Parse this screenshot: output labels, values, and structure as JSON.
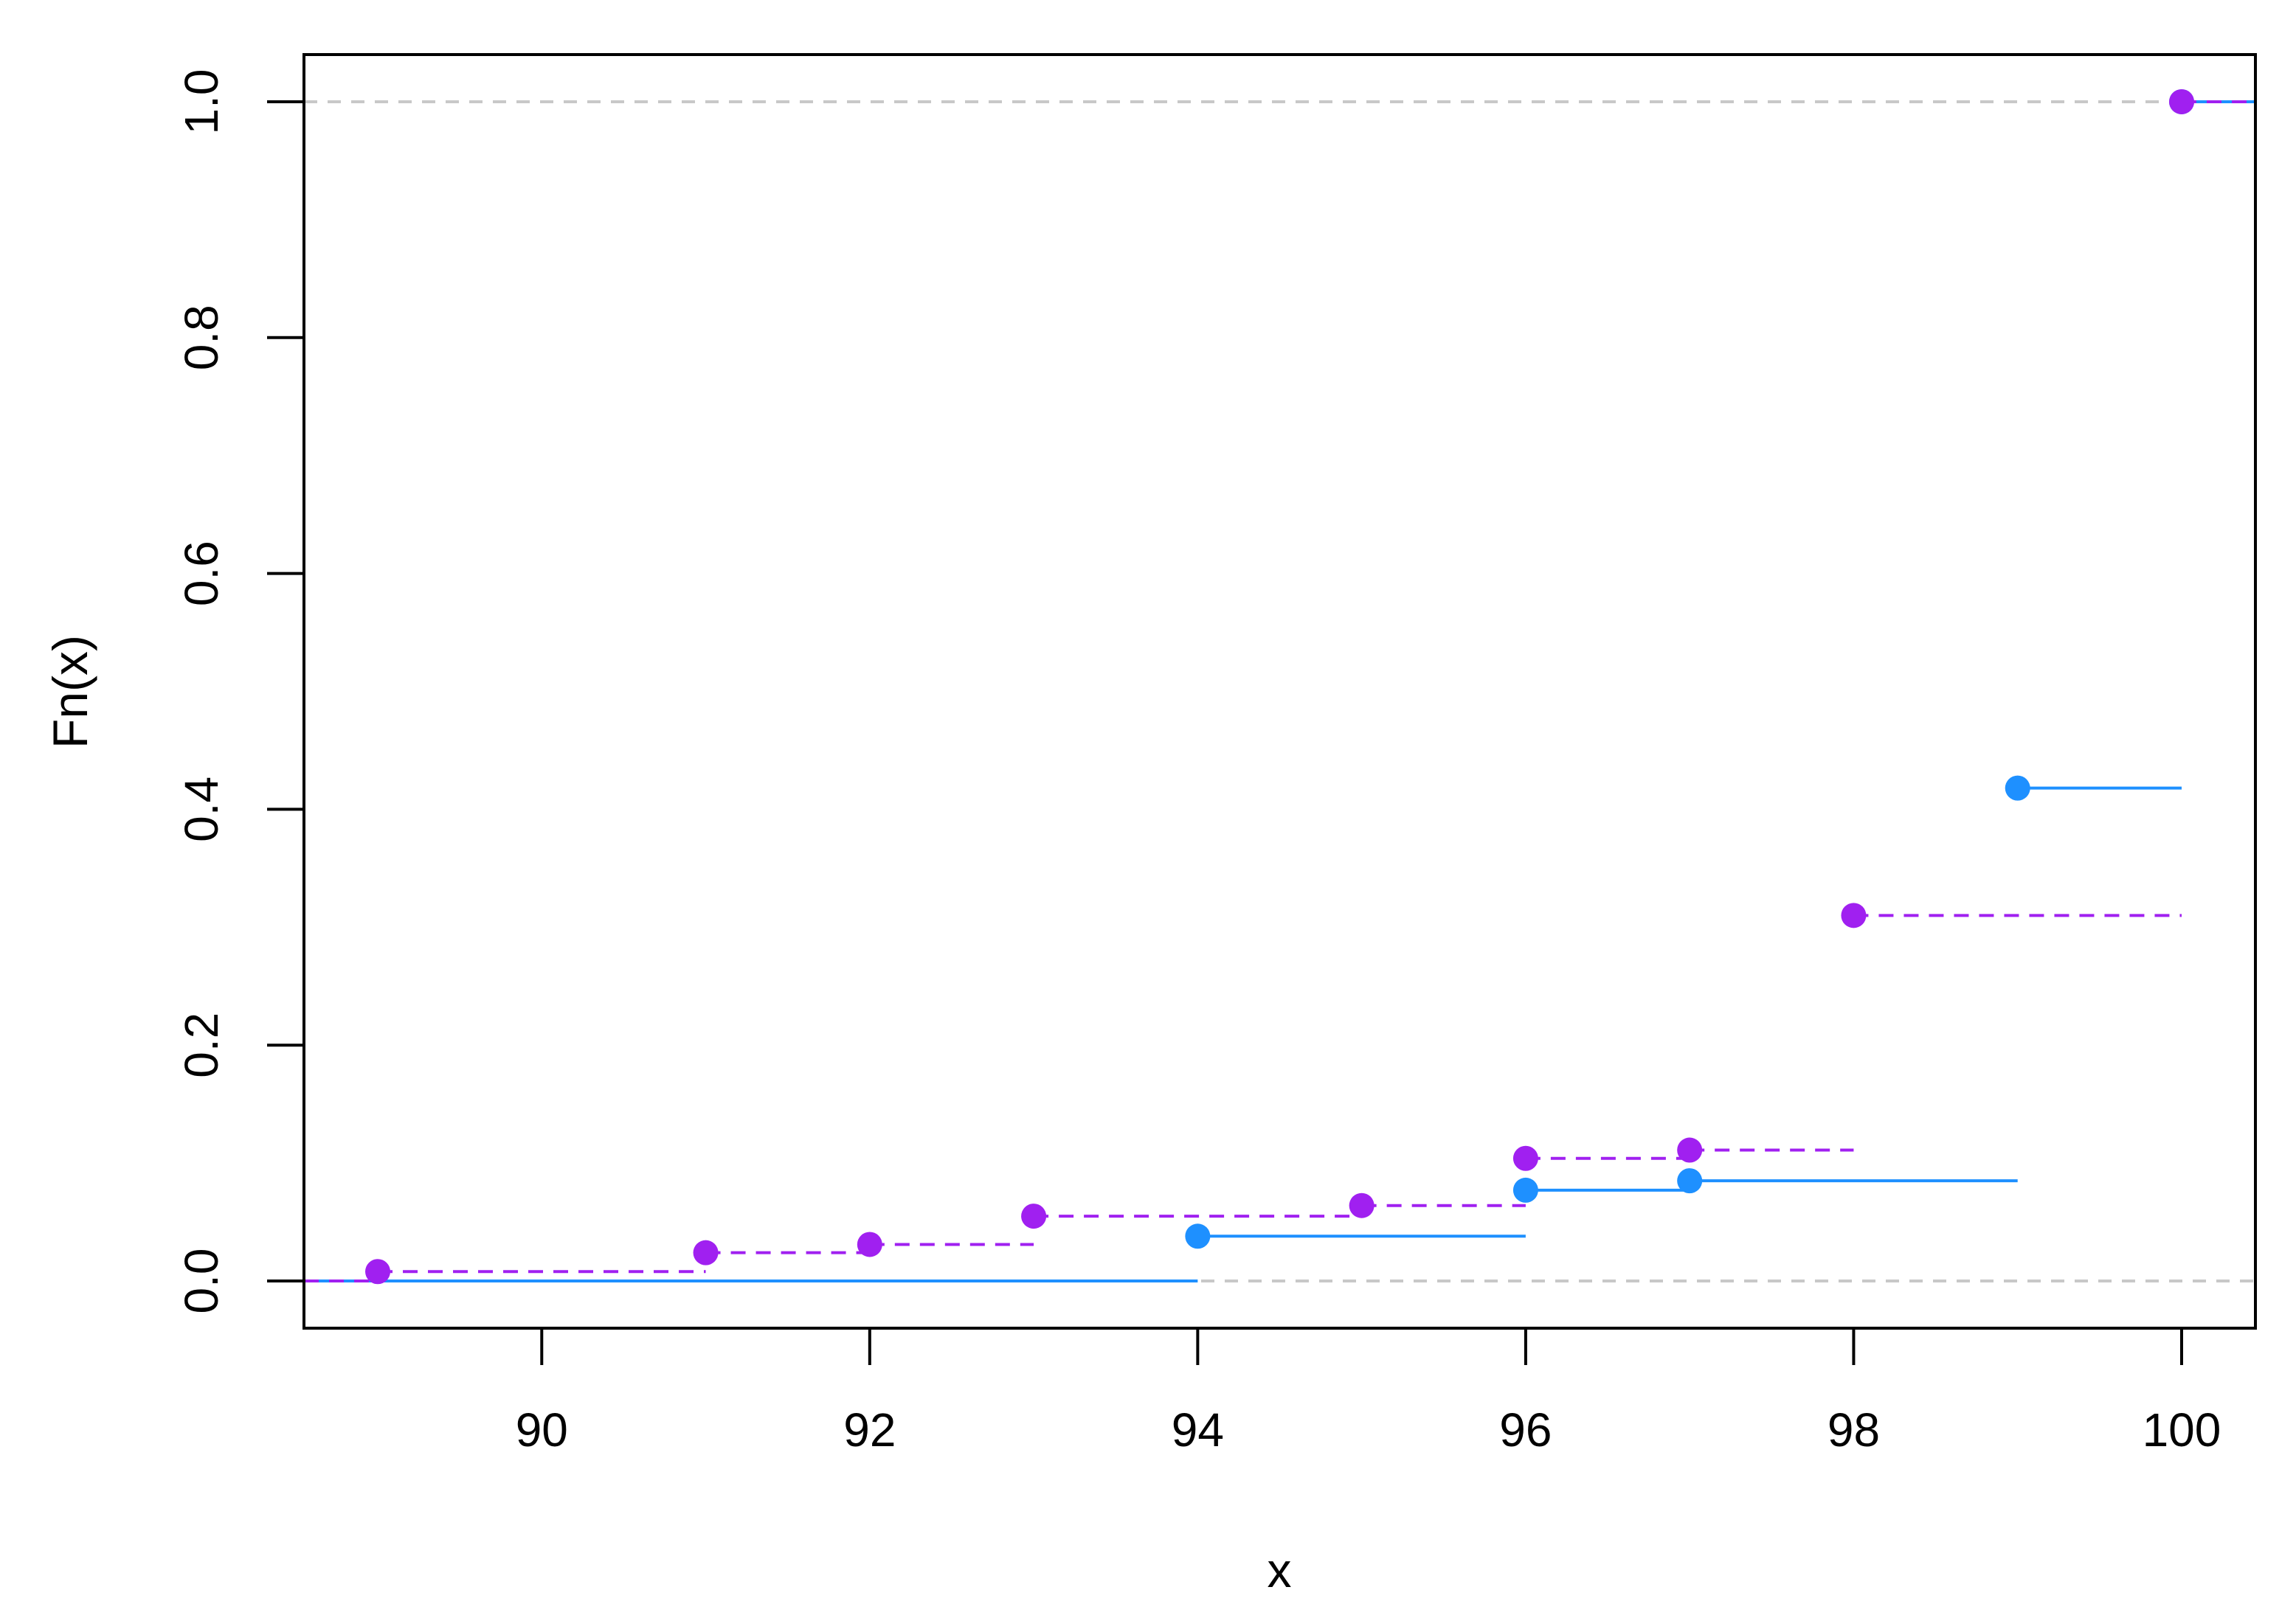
{
  "chart_data": {
    "type": "line",
    "subtype": "step-ecdf",
    "title": "",
    "xlabel": "x",
    "ylabel": "Fn(x)",
    "xlim": [
      88.55,
      100.45
    ],
    "ylim": [
      -0.04,
      1.04
    ],
    "xticks": [
      90,
      92,
      94,
      96,
      98,
      100
    ],
    "yticks": [
      0.0,
      0.2,
      0.4,
      0.6,
      0.8,
      1.0
    ],
    "xtick_labels": [
      "90",
      "92",
      "94",
      "96",
      "98",
      "100"
    ],
    "ytick_labels": [
      "0.0",
      "0.2",
      "0.4",
      "0.6",
      "0.8",
      "1.0"
    ],
    "reference_lines": [
      0.0,
      1.0
    ],
    "grid": false,
    "legend": "none",
    "series": [
      {
        "color": "#1e90ff",
        "line_style": "solid",
        "x_start": 88.55,
        "initial_y": 0.0,
        "points": [
          {
            "x": 94,
            "y": 0.038
          },
          {
            "x": 96,
            "y": 0.077
          },
          {
            "x": 97,
            "y": 0.085
          },
          {
            "x": 99,
            "y": 0.418
          },
          {
            "x": 100,
            "y": 1.0
          }
        ]
      },
      {
        "color": "#a020f0",
        "line_style": "dashed",
        "x_start": 88.55,
        "initial_y": 0.0,
        "points": [
          {
            "x": 89,
            "y": 0.008
          },
          {
            "x": 91,
            "y": 0.024
          },
          {
            "x": 92,
            "y": 0.031
          },
          {
            "x": 93,
            "y": 0.055
          },
          {
            "x": 95,
            "y": 0.064
          },
          {
            "x": 96,
            "y": 0.104
          },
          {
            "x": 97,
            "y": 0.111
          },
          {
            "x": 98,
            "y": 0.31
          },
          {
            "x": 100,
            "y": 1.0
          }
        ]
      }
    ]
  }
}
